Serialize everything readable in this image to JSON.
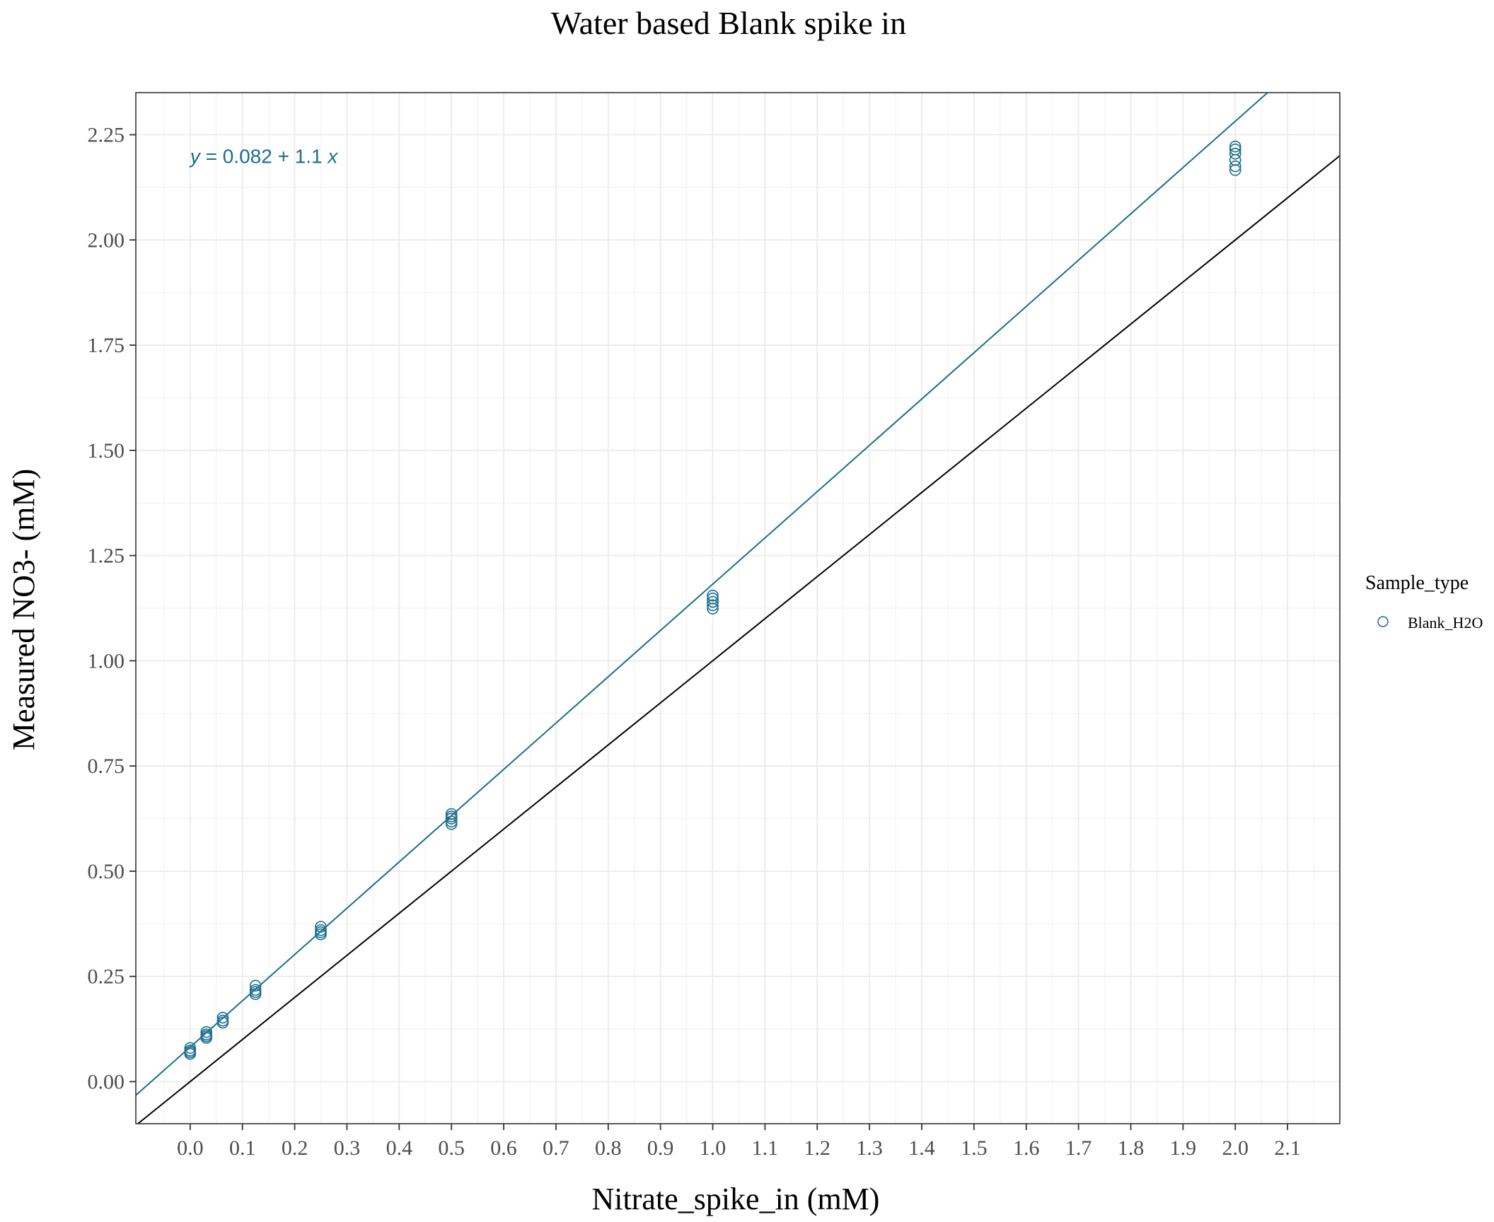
{
  "chart_data": {
    "type": "scatter",
    "title": "Water based Blank spike in",
    "xlabel": "Nitrate_spike_in (mM)",
    "ylabel": "Measured NO3- (mM)",
    "xlim": [
      -0.104,
      2.2
    ],
    "ylim": [
      -0.1,
      2.35
    ],
    "x_ticks": [
      0.0,
      0.1,
      0.2,
      0.3,
      0.4,
      0.5,
      0.6,
      0.7,
      0.8,
      0.9,
      1.0,
      1.1,
      1.2,
      1.3,
      1.4,
      1.5,
      1.6,
      1.7,
      1.8,
      1.9,
      2.0,
      2.1
    ],
    "x_tick_labels": [
      "0.0",
      "0.1",
      "0.2",
      "0.3",
      "0.4",
      "0.5",
      "0.6",
      "0.7",
      "0.8",
      "0.9",
      "1.0",
      "1.1",
      "1.2",
      "1.3",
      "1.4",
      "1.5",
      "1.6",
      "1.7",
      "1.8",
      "1.9",
      "2.0",
      "2.1"
    ],
    "y_ticks": [
      0.0,
      0.25,
      0.5,
      0.75,
      1.0,
      1.25,
      1.5,
      1.75,
      2.0,
      2.25
    ],
    "y_tick_labels": [
      "0.00",
      "0.25",
      "0.50",
      "0.75",
      "1.00",
      "1.25",
      "1.50",
      "1.75",
      "2.00",
      "2.25"
    ],
    "grid": true,
    "legend": {
      "title": "Sample_type",
      "placement": "right",
      "entries": [
        {
          "label": "Blank_H2O",
          "color": "#1a6e8e",
          "marker": "open-circle"
        }
      ]
    },
    "annotation": {
      "text_y": "y",
      "text_eq": " = 0.082 + 1.1 ",
      "text_x": "x",
      "at": [
        0.0,
        2.2
      ],
      "color": "#1a6e8e"
    },
    "fit_line": {
      "intercept": 0.082,
      "slope": 1.1,
      "color": "#1a6e8e"
    },
    "reference_line": {
      "intercept": 0,
      "slope": 1,
      "color": "#000000"
    },
    "series": [
      {
        "name": "Blank_H2O",
        "color": "#1a6e8e",
        "points": [
          [
            0.0,
            0.066
          ],
          [
            0.0,
            0.07
          ],
          [
            0.0,
            0.074
          ],
          [
            0.0,
            0.08
          ],
          [
            0.031,
            0.104
          ],
          [
            0.031,
            0.108
          ],
          [
            0.031,
            0.112
          ],
          [
            0.031,
            0.118
          ],
          [
            0.0625,
            0.14
          ],
          [
            0.0625,
            0.145
          ],
          [
            0.0625,
            0.152
          ],
          [
            0.125,
            0.208
          ],
          [
            0.125,
            0.213
          ],
          [
            0.125,
            0.218
          ],
          [
            0.125,
            0.228
          ],
          [
            0.25,
            0.35
          ],
          [
            0.25,
            0.355
          ],
          [
            0.25,
            0.36
          ],
          [
            0.25,
            0.368
          ],
          [
            0.5,
            0.612
          ],
          [
            0.5,
            0.618
          ],
          [
            0.5,
            0.625
          ],
          [
            0.5,
            0.63
          ],
          [
            0.5,
            0.636
          ],
          [
            1.0,
            1.124
          ],
          [
            1.0,
            1.132
          ],
          [
            1.0,
            1.14
          ],
          [
            1.0,
            1.148
          ],
          [
            1.0,
            1.155
          ],
          [
            2.0,
            2.166
          ],
          [
            2.0,
            2.175
          ],
          [
            2.0,
            2.19
          ],
          [
            2.0,
            2.205
          ],
          [
            2.0,
            2.215
          ],
          [
            2.0,
            2.222
          ]
        ]
      }
    ]
  }
}
